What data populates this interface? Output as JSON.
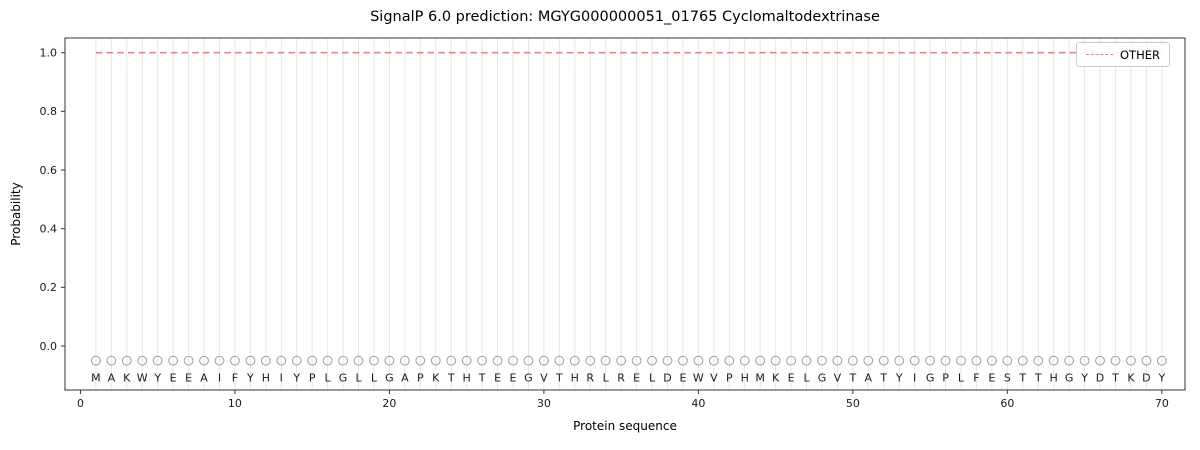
{
  "figure": {
    "title": "SignalP 6.0 prediction: MGYG000000051_01765 Cyclomaltodextrinase",
    "xlabel": "Protein sequence",
    "ylabel": "Probability"
  },
  "legend": {
    "position": "upper right",
    "entries": [
      {
        "label": "OTHER",
        "color": "#f08080",
        "dash": true
      }
    ]
  },
  "chart_data": {
    "type": "line",
    "title": "SignalP 6.0 prediction: MGYG000000051_01765 Cyclomaltodextrinase",
    "xlabel": "Protein sequence",
    "ylabel": "Probability",
    "xlim": [
      -1,
      71.5
    ],
    "ylim": [
      -0.15,
      1.05
    ],
    "x_ticks": [
      0,
      10,
      20,
      30,
      40,
      50,
      60,
      70
    ],
    "y_ticks": [
      0.0,
      0.2,
      0.4,
      0.6,
      0.8,
      1.0
    ],
    "grid": "vertical-gridline-per-residue",
    "legend_position": "upper right",
    "sequence": "MAKWYEEAIFYHIYPLGLLGAPKTHTEEGVTHRLRELDEWVPHMKELGVTATYIGPLFESTTHGYDTKDY",
    "marker_row": {
      "y": -0.05,
      "symbol": "open-circle"
    },
    "letter_row_y": -0.108,
    "series": [
      {
        "name": "OTHER",
        "style": "dashed",
        "color": "#f08080",
        "x_start": 1,
        "values": [
          1.0,
          1.0,
          1.0,
          1.0,
          1.0,
          1.0,
          1.0,
          1.0,
          1.0,
          1.0,
          1.0,
          1.0,
          1.0,
          1.0,
          1.0,
          1.0,
          1.0,
          1.0,
          1.0,
          1.0,
          1.0,
          1.0,
          1.0,
          1.0,
          1.0,
          1.0,
          1.0,
          1.0,
          1.0,
          1.0,
          1.0,
          1.0,
          1.0,
          1.0,
          1.0,
          1.0,
          1.0,
          1.0,
          1.0,
          1.0,
          1.0,
          1.0,
          1.0,
          1.0,
          1.0,
          1.0,
          1.0,
          1.0,
          1.0,
          1.0,
          1.0,
          1.0,
          1.0,
          1.0,
          1.0,
          1.0,
          1.0,
          1.0,
          1.0,
          1.0,
          1.0,
          1.0,
          1.0,
          1.0,
          1.0,
          1.0,
          1.0,
          1.0,
          1.0,
          1.0
        ]
      }
    ],
    "colors": {
      "line": "#f08080",
      "grid": "#e7e7e7",
      "marker": "#9e9e9e",
      "letters": "#1a1a1a",
      "axes": "#333333",
      "tick_text": "#1a1a1a"
    }
  }
}
